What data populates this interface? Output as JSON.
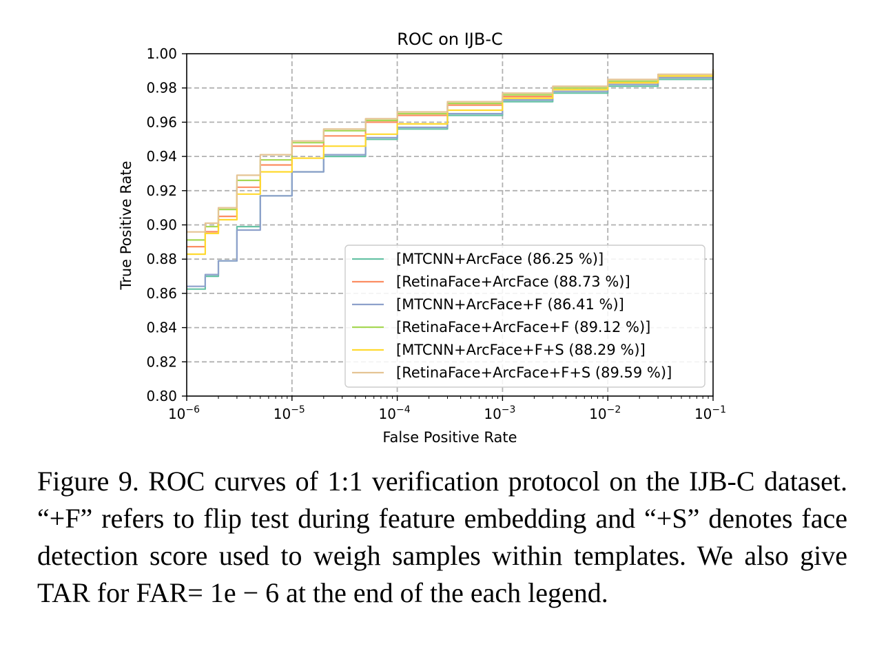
{
  "chart_data": {
    "type": "line",
    "title": "ROC on IJB-C",
    "xlabel": "False Positive Rate",
    "ylabel": "True Positive Rate",
    "xscale": "log",
    "xlim": [
      1e-06,
      0.1
    ],
    "ylim": [
      0.8,
      1.0
    ],
    "grid": true,
    "legend_position": "lower-right",
    "x_ticks": [
      {
        "value": 1e-06,
        "base": "10",
        "exp": "−6"
      },
      {
        "value": 1e-05,
        "base": "10",
        "exp": "−5"
      },
      {
        "value": 0.0001,
        "base": "10",
        "exp": "−4"
      },
      {
        "value": 0.001,
        "base": "10",
        "exp": "−3"
      },
      {
        "value": 0.01,
        "base": "10",
        "exp": "−2"
      },
      {
        "value": 0.1,
        "base": "10",
        "exp": "−1"
      }
    ],
    "y_ticks": [
      {
        "value": 0.8,
        "label": "0.80"
      },
      {
        "value": 0.82,
        "label": "0.82"
      },
      {
        "value": 0.84,
        "label": "0.84"
      },
      {
        "value": 0.86,
        "label": "0.86"
      },
      {
        "value": 0.88,
        "label": "0.88"
      },
      {
        "value": 0.9,
        "label": "0.90"
      },
      {
        "value": 0.92,
        "label": "0.92"
      },
      {
        "value": 0.94,
        "label": "0.94"
      },
      {
        "value": 0.96,
        "label": "0.96"
      },
      {
        "value": 0.98,
        "label": "0.98"
      },
      {
        "value": 1.0,
        "label": "1.00"
      }
    ],
    "x": [
      1e-06,
      1.5e-06,
      2e-06,
      3e-06,
      5e-06,
      1e-05,
      2e-05,
      5e-05,
      0.0001,
      0.0003,
      0.001,
      0.003,
      0.01,
      0.03,
      0.1
    ],
    "series": [
      {
        "name": "[MTCNN+ArcFace (86.25 %)]",
        "color": "#66c2a5",
        "values": [
          0.8625,
          0.87,
          0.879,
          0.899,
          0.917,
          0.931,
          0.94,
          0.95,
          0.956,
          0.964,
          0.972,
          0.977,
          0.981,
          0.985,
          0.99
        ]
      },
      {
        "name": "[RetinaFace+ArcFace (88.73 %)]",
        "color": "#fc8d62",
        "values": [
          0.8873,
          0.896,
          0.905,
          0.922,
          0.935,
          0.946,
          0.952,
          0.96,
          0.964,
          0.97,
          0.975,
          0.98,
          0.983,
          0.986,
          0.99
        ]
      },
      {
        "name": "[MTCNN+ArcFace+F (86.41 %)]",
        "color": "#8da0cb",
        "values": [
          0.8641,
          0.871,
          0.879,
          0.897,
          0.917,
          0.931,
          0.941,
          0.951,
          0.957,
          0.965,
          0.973,
          0.978,
          0.982,
          0.986,
          0.99
        ]
      },
      {
        "name": "[RetinaFace+ArcFace+F (89.12 %)]",
        "color": "#a6d854",
        "values": [
          0.8912,
          0.899,
          0.909,
          0.926,
          0.938,
          0.948,
          0.955,
          0.961,
          0.965,
          0.971,
          0.976,
          0.98,
          0.984,
          0.987,
          0.99
        ]
      },
      {
        "name": "[MTCNN+ArcFace+F+S (88.29 %)]",
        "color": "#ffd92f",
        "values": [
          0.8829,
          0.895,
          0.903,
          0.918,
          0.931,
          0.939,
          0.946,
          0.953,
          0.959,
          0.967,
          0.974,
          0.979,
          0.983,
          0.987,
          0.991
        ]
      },
      {
        "name": "[RetinaFace+ArcFace+F+S (89.59 %)]",
        "color": "#e5c494",
        "values": [
          0.8959,
          0.901,
          0.91,
          0.929,
          0.941,
          0.949,
          0.956,
          0.962,
          0.966,
          0.972,
          0.977,
          0.981,
          0.985,
          0.988,
          0.991
        ]
      }
    ]
  },
  "caption": "Figure 9. ROC curves of 1:1 verification protocol on the IJB-C dataset. “+F” refers to flip test during feature embedding and “+S” denotes face detection score used to weigh samples within tem­plates. We also give TAR for FAR= 1e − 6 at the end of the each legend."
}
